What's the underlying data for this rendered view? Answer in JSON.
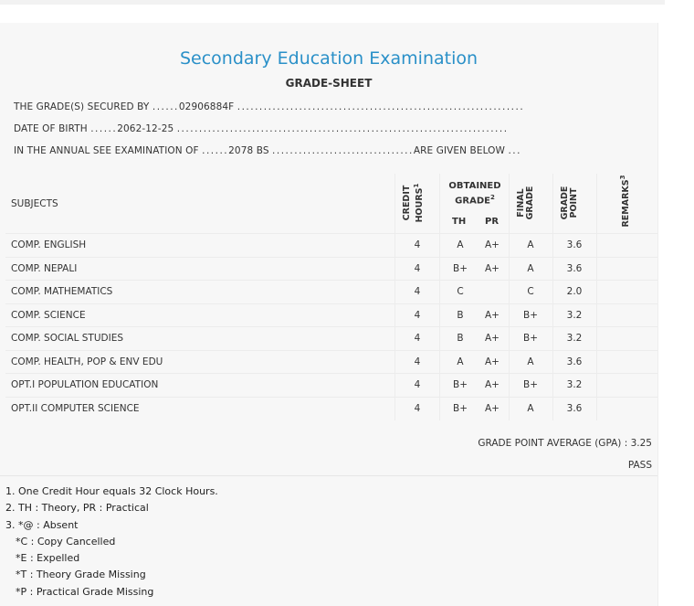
{
  "sheet": {
    "title": "Secondary Education Examination",
    "subtitle": "GRADE-SHEET",
    "secured_by_label": "THE GRADE(S) SECURED BY",
    "secured_by_value": "02906884F",
    "dob_label": "DATE OF BIRTH",
    "dob_value": "2062-12-25",
    "exam_label": "IN THE ANNUAL SEE EXAMINATION OF",
    "exam_value": "2078 BS",
    "given_below": "ARE GIVEN BELOW"
  },
  "table": {
    "headers": {
      "subjects": "SUBJECTS",
      "credit_line1": "CREDIT",
      "credit_line2": "HOURS",
      "credit_sup": "1",
      "obtained_line1": "OBTAINED",
      "obtained_line2": "GRADE",
      "obtained_sup": "2",
      "th": "TH",
      "pr": "PR",
      "final_line1": "FINAL",
      "final_line2": "GRADE",
      "gp_line1": "GRADE",
      "gp_line2": "POINT",
      "remarks": "REMARKS",
      "remarks_sup": "3"
    },
    "rows": [
      {
        "subject": "COMP. ENGLISH",
        "credit": "4",
        "th": "A",
        "pr": "A+",
        "final": "A",
        "gp": "3.6",
        "remarks": ""
      },
      {
        "subject": "COMP. NEPALI",
        "credit": "4",
        "th": "B+",
        "pr": "A+",
        "final": "A",
        "gp": "3.6",
        "remarks": ""
      },
      {
        "subject": "COMP. MATHEMATICS",
        "credit": "4",
        "th": "C",
        "pr": "",
        "final": "C",
        "gp": "2.0",
        "remarks": ""
      },
      {
        "subject": "COMP. SCIENCE",
        "credit": "4",
        "th": "B",
        "pr": "A+",
        "final": "B+",
        "gp": "3.2",
        "remarks": ""
      },
      {
        "subject": "COMP. SOCIAL STUDIES",
        "credit": "4",
        "th": "B",
        "pr": "A+",
        "final": "B+",
        "gp": "3.2",
        "remarks": ""
      },
      {
        "subject": "COMP. HEALTH, POP & ENV EDU",
        "credit": "4",
        "th": "A",
        "pr": "A+",
        "final": "A",
        "gp": "3.6",
        "remarks": ""
      },
      {
        "subject": "OPT.I POPULATION EDUCATION",
        "credit": "4",
        "th": "B+",
        "pr": "A+",
        "final": "B+",
        "gp": "3.2",
        "remarks": ""
      },
      {
        "subject": "OPT.II COMPUTER SCIENCE",
        "credit": "4",
        "th": "B+",
        "pr": "A+",
        "final": "A",
        "gp": "3.6",
        "remarks": ""
      }
    ]
  },
  "summary": {
    "gpa_label": "GRADE POINT AVERAGE (GPA) :",
    "gpa_value": "3.25",
    "result": "PASS"
  },
  "notes": [
    "1. One Credit Hour equals 32 Clock Hours.",
    "2. TH : Theory, PR : Practical",
    "3. *@ : Absent",
    "*C : Copy Cancelled",
    "*E : Expelled",
    "*T : Theory Grade Missing",
    "*P : Practical Grade Missing"
  ],
  "colors": {
    "title": "#2a90c8",
    "background": "#f7f7f7"
  }
}
